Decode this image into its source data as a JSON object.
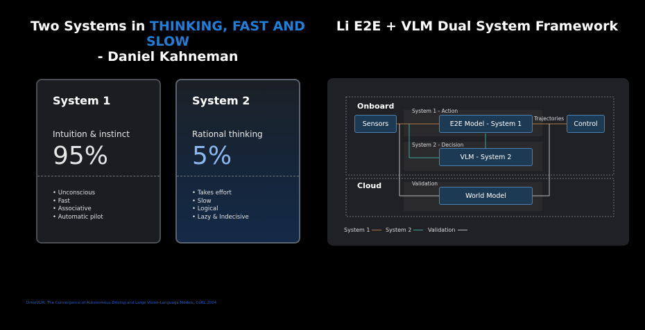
{
  "left_title": {
    "prefix": "Two Systems in ",
    "highlight": "THINKING, FAST AND SLOW",
    "line2": "- Daniel Kahneman"
  },
  "right_title": "Li E2E + VLM Dual System Framework",
  "cards": [
    {
      "title": "System 1",
      "subtitle": "Intuition & instinct",
      "percent": "95%",
      "bullets": [
        "Unconscious",
        "Fast",
        "Associative",
        "Automatic pilot"
      ]
    },
    {
      "title": "System 2",
      "subtitle": "Rational thinking",
      "percent": "5%",
      "bullets": [
        "Takes effort",
        "Slow",
        "Logical",
        "Lazy & Indecisive"
      ]
    }
  ],
  "diagram": {
    "zones": {
      "onboard": "Onboard",
      "cloud": "Cloud"
    },
    "nodes": {
      "sensors": "Sensors",
      "e2e": "E2E Model - System 1",
      "control": "Control",
      "vlm": "VLM - System 2",
      "world": "World Model"
    },
    "edge_labels": {
      "action": "System 1 - Action",
      "decision": "System 2 - Decision",
      "trajectories": "Trajectories",
      "validation": "Validation"
    },
    "legend": [
      {
        "label": "System 1",
        "color": "#b07a4a"
      },
      {
        "label": "System 2",
        "color": "#3fa89a"
      },
      {
        "label": "Validation",
        "color": "#bbbbbb"
      }
    ]
  },
  "footnote": "DriveVLM: The Convergence of Autonomous Driving and Large Vision-Language Models, CoRL 2024"
}
